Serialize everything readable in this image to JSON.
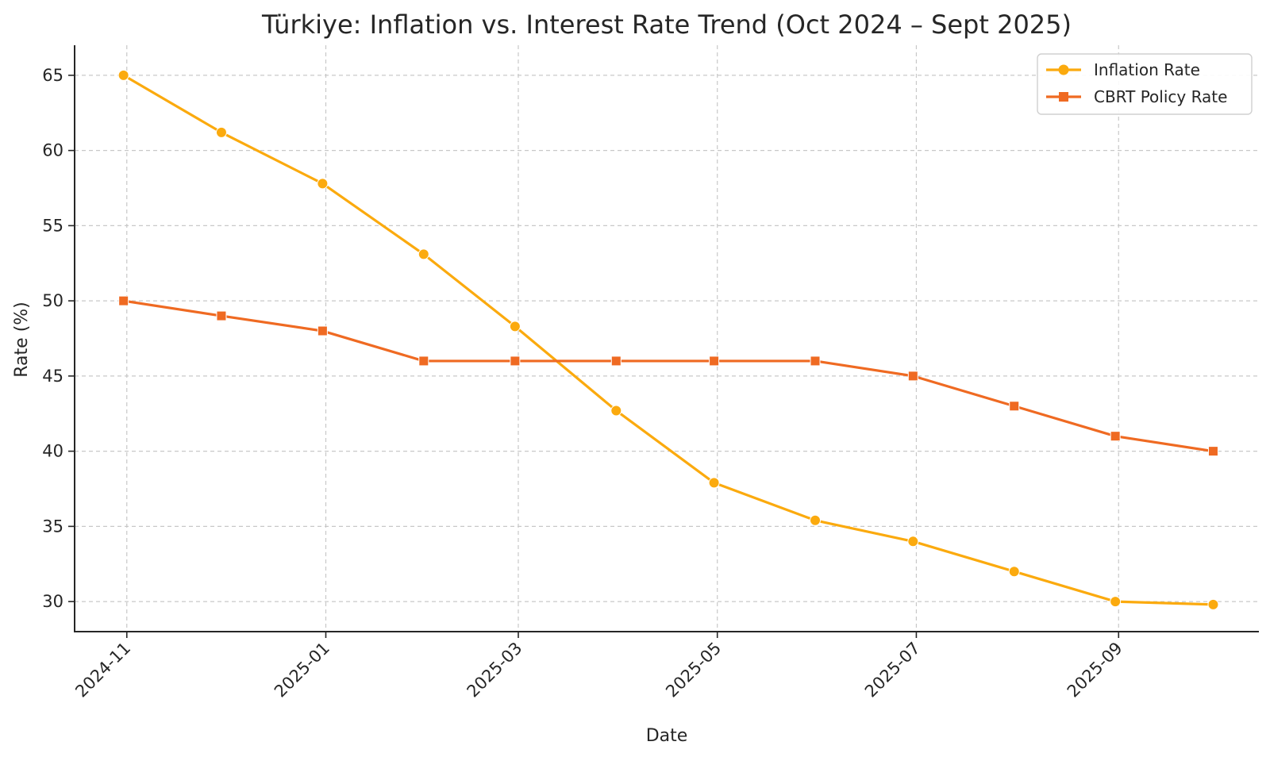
{
  "chart_data": {
    "type": "line",
    "title": "Türkiye: Inflation vs. Interest Rate Trend (Oct 2024 – Sept 2025)",
    "xlabel": "Date",
    "ylabel": "Rate (%)",
    "x": [
      "2024-10-31",
      "2024-11-30",
      "2024-12-31",
      "2025-01-31",
      "2025-02-28",
      "2025-03-31",
      "2025-04-30",
      "2025-05-31",
      "2025-06-30",
      "2025-07-31",
      "2025-08-31",
      "2025-09-30"
    ],
    "xlim": [
      "2024-10-16",
      "2025-10-14"
    ],
    "ylim": [
      28,
      67
    ],
    "xticks": [
      {
        "date": "2024-11-01",
        "label": "2024-11"
      },
      {
        "date": "2025-01-01",
        "label": "2025-01"
      },
      {
        "date": "2025-03-01",
        "label": "2025-03"
      },
      {
        "date": "2025-05-01",
        "label": "2025-05"
      },
      {
        "date": "2025-07-01",
        "label": "2025-07"
      },
      {
        "date": "2025-09-01",
        "label": "2025-09"
      }
    ],
    "yticks": [
      30,
      35,
      40,
      45,
      50,
      55,
      60,
      65
    ],
    "grid": true,
    "legend_position": "top-right",
    "series": [
      {
        "name": "Inflation Rate",
        "color": "#FBAA0E",
        "marker": "circle",
        "values": [
          65.0,
          61.2,
          57.8,
          53.1,
          48.3,
          42.7,
          37.9,
          35.4,
          34.0,
          32.0,
          30.0,
          29.8
        ]
      },
      {
        "name": "CBRT Policy Rate",
        "color": "#EF6A22",
        "marker": "square",
        "values": [
          50,
          49,
          48,
          46,
          46,
          46,
          46,
          46,
          45,
          43,
          41,
          40
        ]
      }
    ]
  }
}
